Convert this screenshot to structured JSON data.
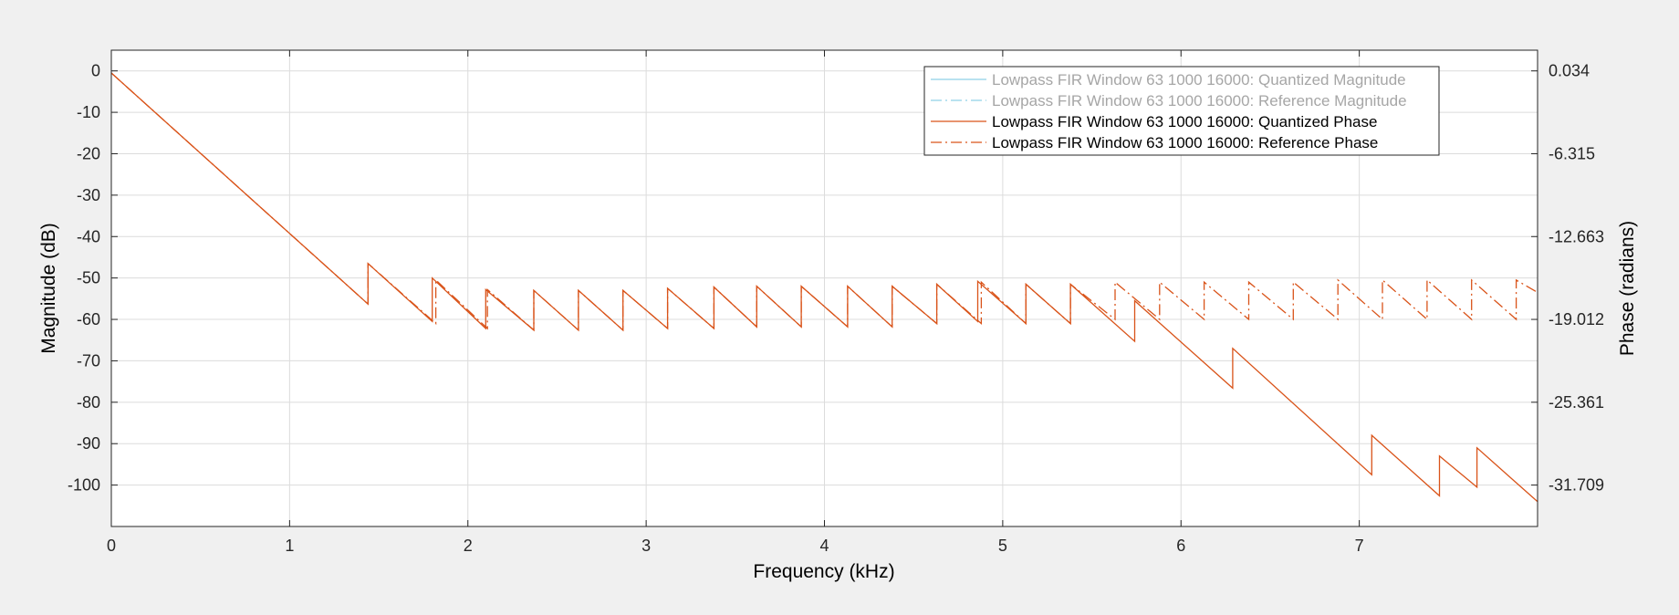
{
  "chart_data": {
    "type": "line",
    "xlabel": "Frequency (kHz)",
    "ylabel_left": "Magnitude (dB)",
    "ylabel_right": "Phase (radians)",
    "xlim": [
      0,
      8
    ],
    "ylim_left": [
      -110,
      5
    ],
    "xticks": [
      0,
      1,
      2,
      3,
      4,
      5,
      6,
      7
    ],
    "xtick_labels": [
      "0",
      "1",
      "2",
      "3",
      "4",
      "5",
      "6",
      "7"
    ],
    "yticks_left": [
      0,
      -10,
      -20,
      -30,
      -40,
      -50,
      -60,
      -70,
      -80,
      -90,
      -100
    ],
    "ytick_labels_left": [
      "0",
      "-10",
      "-20",
      "-30",
      "-40",
      "-50",
      "-60",
      "-70",
      "-80",
      "-90",
      "-100"
    ],
    "yticks_right_at_left": [
      0,
      -20,
      -40,
      -60,
      -80,
      -100
    ],
    "ytick_labels_right": [
      "0.034",
      "-6.315",
      "-12.663",
      "-19.012",
      "-25.361",
      "-31.709"
    ],
    "grid": true,
    "legend_location": "top-right",
    "series": [
      {
        "name": "Lowpass FIR Window 63 1000 16000: Quantized Magnitude",
        "color": "#8fd0e8",
        "style": "solid",
        "hidden": true,
        "points": []
      },
      {
        "name": "Lowpass FIR Window 63 1000 16000: Reference Magnitude",
        "color": "#8fd0e8",
        "style": "dashdot",
        "hidden": true,
        "points": []
      },
      {
        "name": "Lowpass FIR Window 63 1000 16000: Quantized Phase",
        "color": "#d95319",
        "style": "solid",
        "hidden": false,
        "points": [
          [
            0,
            -0.5
          ],
          [
            1.44,
            -56.3
          ],
          [
            1.44,
            -46.5
          ],
          [
            1.8,
            -60.5
          ],
          [
            1.8,
            -50
          ],
          [
            2.1,
            -62.2
          ],
          [
            2.1,
            -52.8
          ],
          [
            2.37,
            -62.6
          ],
          [
            2.37,
            -53
          ],
          [
            2.62,
            -62.6
          ],
          [
            2.62,
            -53
          ],
          [
            2.87,
            -62.6
          ],
          [
            2.87,
            -53
          ],
          [
            3.12,
            -62.2
          ],
          [
            3.12,
            -52.5
          ],
          [
            3.38,
            -62.2
          ],
          [
            3.38,
            -52.2
          ],
          [
            3.62,
            -61.8
          ],
          [
            3.62,
            -52
          ],
          [
            3.87,
            -61.8
          ],
          [
            3.87,
            -52
          ],
          [
            4.13,
            -61.8
          ],
          [
            4.13,
            -52
          ],
          [
            4.38,
            -61.8
          ],
          [
            4.38,
            -52
          ],
          [
            4.63,
            -61
          ],
          [
            4.63,
            -51.5
          ],
          [
            4.86,
            -60.5
          ],
          [
            4.86,
            -50.8
          ],
          [
            5.13,
            -61
          ],
          [
            5.13,
            -51.5
          ],
          [
            5.38,
            -61
          ],
          [
            5.38,
            -51.5
          ],
          [
            5.74,
            -65.3
          ],
          [
            5.74,
            -55.5
          ],
          [
            6.29,
            -76.6
          ],
          [
            6.29,
            -67
          ],
          [
            7.07,
            -97.5
          ],
          [
            7.07,
            -88
          ],
          [
            7.45,
            -102.6
          ],
          [
            7.45,
            -93
          ],
          [
            7.66,
            -100.5
          ],
          [
            7.66,
            -91
          ],
          [
            8.0,
            -104
          ]
        ]
      },
      {
        "name": "Lowpass FIR Window 63 1000 16000: Reference Phase",
        "color": "#d95319",
        "style": "dashdot",
        "hidden": false,
        "points": [
          [
            0,
            -0.5
          ],
          [
            1.44,
            -56.3
          ],
          [
            1.44,
            -46.5
          ],
          [
            1.82,
            -61
          ],
          [
            1.82,
            -50.5
          ],
          [
            2.11,
            -62.2
          ],
          [
            2.11,
            -52.8
          ],
          [
            2.37,
            -62.6
          ],
          [
            2.37,
            -53
          ],
          [
            2.62,
            -62.6
          ],
          [
            2.62,
            -53
          ],
          [
            2.87,
            -62.6
          ],
          [
            2.87,
            -53
          ],
          [
            3.12,
            -62.2
          ],
          [
            3.12,
            -52.5
          ],
          [
            3.38,
            -62.2
          ],
          [
            3.38,
            -52.2
          ],
          [
            3.62,
            -61.8
          ],
          [
            3.62,
            -52
          ],
          [
            3.87,
            -61.8
          ],
          [
            3.87,
            -52
          ],
          [
            4.13,
            -61.8
          ],
          [
            4.13,
            -52
          ],
          [
            4.38,
            -61.8
          ],
          [
            4.38,
            -52
          ],
          [
            4.63,
            -61
          ],
          [
            4.63,
            -51.5
          ],
          [
            4.88,
            -61
          ],
          [
            4.88,
            -51
          ],
          [
            5.13,
            -61
          ],
          [
            5.13,
            -51.5
          ],
          [
            5.38,
            -61
          ],
          [
            5.38,
            -51.5
          ],
          [
            5.63,
            -60
          ],
          [
            5.63,
            -51
          ],
          [
            5.88,
            -60
          ],
          [
            5.88,
            -51
          ],
          [
            6.13,
            -60
          ],
          [
            6.13,
            -51
          ],
          [
            6.38,
            -60
          ],
          [
            6.38,
            -51
          ],
          [
            6.63,
            -60
          ],
          [
            6.63,
            -51
          ],
          [
            6.88,
            -60
          ],
          [
            6.88,
            -50.5
          ],
          [
            7.13,
            -60
          ],
          [
            7.13,
            -50.5
          ],
          [
            7.38,
            -60
          ],
          [
            7.38,
            -50.5
          ],
          [
            7.63,
            -60
          ],
          [
            7.63,
            -50.5
          ],
          [
            7.88,
            -60
          ],
          [
            7.88,
            -50.5
          ],
          [
            8.0,
            -53.5
          ]
        ]
      }
    ]
  }
}
